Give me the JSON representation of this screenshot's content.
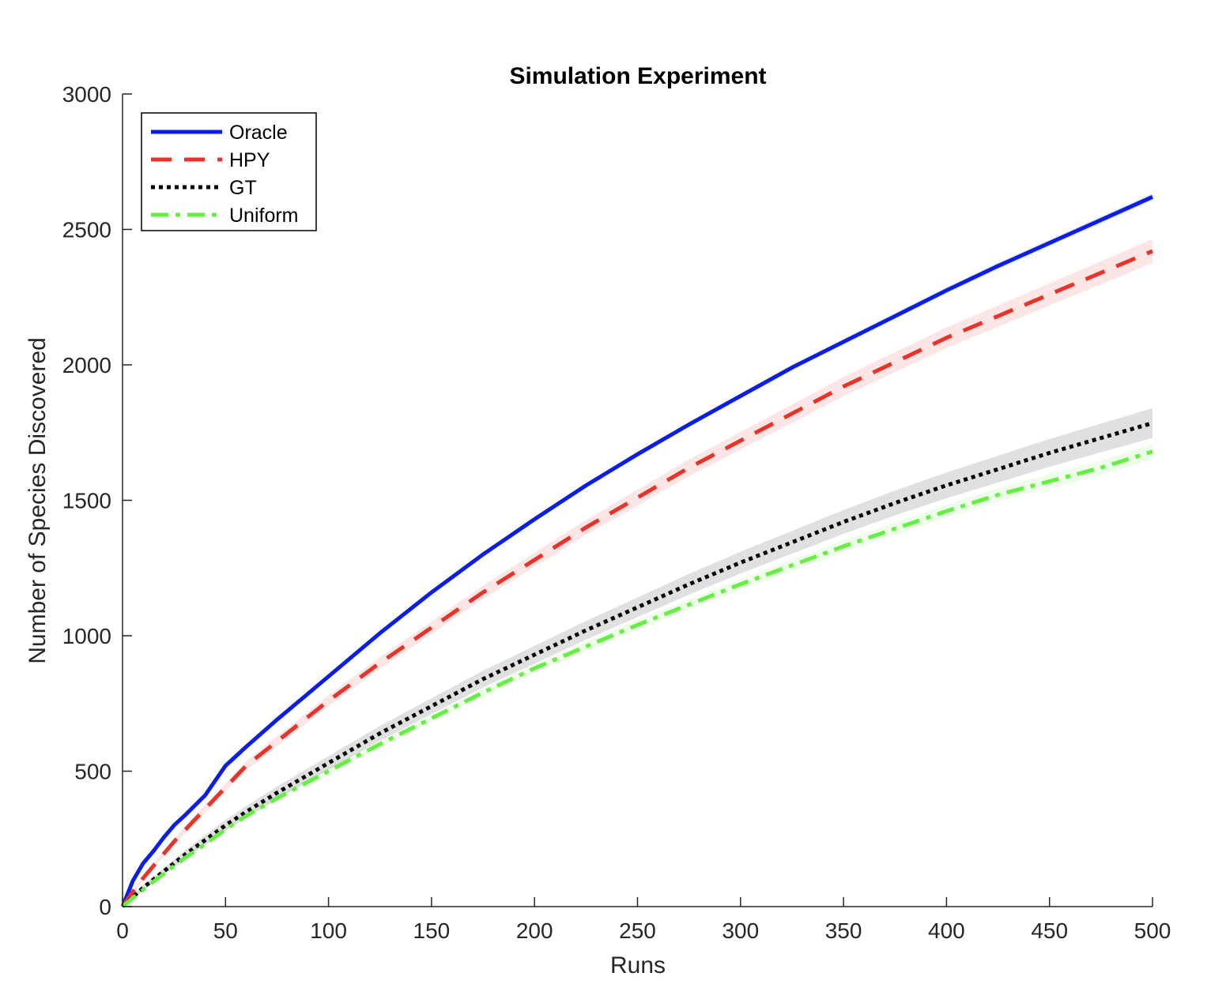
{
  "chart_data": {
    "type": "line",
    "title": "Simulation Experiment",
    "xlabel": "Runs",
    "ylabel": "Number of Species Discovered",
    "xlim": [
      0,
      500
    ],
    "ylim": [
      0,
      3000
    ],
    "x_ticks": [
      0,
      50,
      100,
      150,
      200,
      250,
      300,
      350,
      400,
      450,
      500
    ],
    "y_ticks": [
      0,
      500,
      1000,
      1500,
      2000,
      2500,
      3000
    ],
    "grid": false,
    "legend_position": "top-left",
    "x": [
      0,
      5,
      10,
      15,
      20,
      25,
      30,
      40,
      50,
      60,
      75,
      100,
      125,
      150,
      175,
      200,
      225,
      250,
      275,
      300,
      325,
      350,
      375,
      400,
      425,
      450,
      475,
      500
    ],
    "series": [
      {
        "name": "Oracle",
        "color": "#0a1ee6",
        "style": "solid",
        "band": 12,
        "values": [
          0,
          95,
          160,
          205,
          255,
          300,
          335,
          410,
          520,
          590,
          690,
          850,
          1010,
          1160,
          1300,
          1430,
          1555,
          1670,
          1780,
          1885,
          1990,
          2085,
          2180,
          2275,
          2365,
          2450,
          2535,
          2620
        ]
      },
      {
        "name": "HPY",
        "color": "#e8332a",
        "style": "dashed",
        "band": 40,
        "values": [
          0,
          55,
          105,
          150,
          195,
          240,
          280,
          360,
          440,
          520,
          610,
          760,
          900,
          1030,
          1160,
          1280,
          1400,
          1510,
          1620,
          1720,
          1820,
          1920,
          2010,
          2100,
          2180,
          2260,
          2340,
          2420
        ]
      },
      {
        "name": "GT",
        "color": "#000000",
        "style": "dotted",
        "band": 50,
        "values": [
          0,
          35,
          70,
          100,
          130,
          160,
          190,
          245,
          300,
          350,
          420,
          530,
          640,
          740,
          840,
          930,
          1020,
          1105,
          1190,
          1270,
          1345,
          1420,
          1490,
          1555,
          1615,
          1675,
          1730,
          1785
        ]
      },
      {
        "name": "Uniform",
        "color": "#66ee44",
        "style": "dashdot",
        "band": 25,
        "values": [
          0,
          32,
          62,
          92,
          120,
          150,
          178,
          230,
          285,
          335,
          400,
          500,
          600,
          695,
          790,
          880,
          960,
          1040,
          1115,
          1190,
          1260,
          1330,
          1395,
          1460,
          1520,
          1570,
          1620,
          1680
        ]
      }
    ]
  }
}
